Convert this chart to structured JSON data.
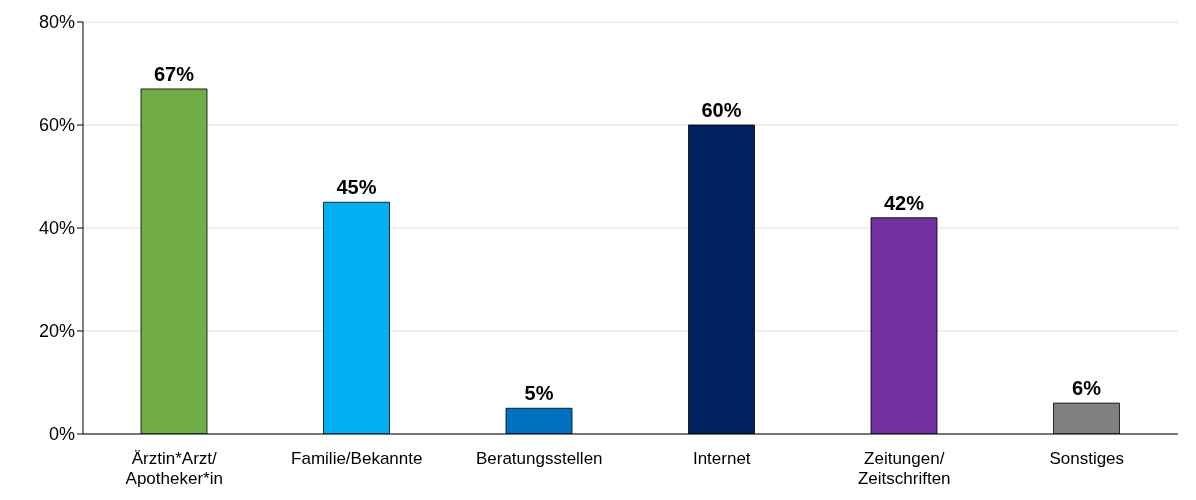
{
  "chart_data": {
    "type": "bar",
    "categories": [
      "Ärztin*Arzt/ Apotheker*in",
      "Familie/Bekannte",
      "Beratungsstellen",
      "Internet",
      "Zeitungen/ Zeitschriften",
      "Sonstiges"
    ],
    "values": [
      67,
      45,
      5,
      60,
      42,
      6
    ],
    "colors": [
      "#70ad47",
      "#00b0f0",
      "#0070c0",
      "#002060",
      "#7030a0",
      "#808080"
    ],
    "value_labels": [
      "67%",
      "45%",
      "5%",
      "60%",
      "42%",
      "6%"
    ],
    "ylim": [
      0,
      80
    ],
    "yticks": [
      {
        "value": 0,
        "label": "0%"
      },
      {
        "value": 20,
        "label": "20%"
      },
      {
        "value": 40,
        "label": "40%"
      },
      {
        "value": 60,
        "label": "60%"
      },
      {
        "value": 80,
        "label": "80%"
      }
    ],
    "grid": "y"
  }
}
